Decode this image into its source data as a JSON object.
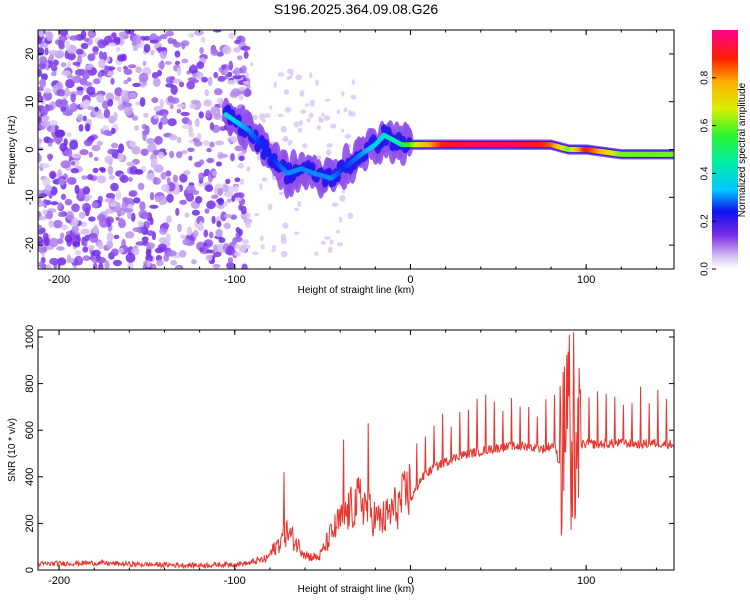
{
  "title": "S196.2025.364.09.08.G26",
  "chart_data": [
    {
      "type": "heatmap",
      "xlabel": "Height of straight line (km)",
      "ylabel": "Frequency (Hz)",
      "xlim": [
        -212,
        150
      ],
      "ylim": [
        -25,
        25
      ],
      "xticks": [
        -200,
        -100,
        0,
        100
      ],
      "yticks": [
        -20,
        -10,
        0,
        10,
        20
      ],
      "xtick_labels": [
        "-200",
        "-100",
        "0",
        "100"
      ],
      "ytick_labels": [
        "-20",
        "-10",
        "0",
        "10",
        "20"
      ],
      "colorbar": {
        "label": "Normalized spectral amplitude",
        "range": [
          0,
          1
        ],
        "ticks": [
          0.0,
          0.2,
          0.4,
          0.6,
          0.8
        ],
        "tick_labels": [
          "0.0",
          "0.2",
          "0.4",
          "0.6",
          "0.8"
        ]
      },
      "ridge": [
        {
          "x": -100,
          "y": 6,
          "amp": 0.35
        },
        {
          "x": -92,
          "y": 4,
          "amp": 0.3
        },
        {
          "x": -85,
          "y": 1,
          "amp": 0.25
        },
        {
          "x": -78,
          "y": -2,
          "amp": 0.25
        },
        {
          "x": -70,
          "y": -5,
          "amp": 0.3
        },
        {
          "x": -62,
          "y": -4,
          "amp": 0.3
        },
        {
          "x": -55,
          "y": -5,
          "amp": 0.3
        },
        {
          "x": -45,
          "y": -6,
          "amp": 0.3
        },
        {
          "x": -38,
          "y": -4,
          "amp": 0.25
        },
        {
          "x": -28,
          "y": -1,
          "amp": 0.3
        },
        {
          "x": -20,
          "y": 1,
          "amp": 0.35
        },
        {
          "x": -15,
          "y": 3,
          "amp": 0.4
        },
        {
          "x": -5,
          "y": 1,
          "amp": 0.45
        },
        {
          "x": 5,
          "y": 1,
          "amp": 0.7
        },
        {
          "x": 20,
          "y": 1,
          "amp": 0.9
        },
        {
          "x": 40,
          "y": 1,
          "amp": 0.95
        },
        {
          "x": 60,
          "y": 1,
          "amp": 0.95
        },
        {
          "x": 80,
          "y": 1,
          "amp": 0.85
        },
        {
          "x": 90,
          "y": 0,
          "amp": 0.6
        },
        {
          "x": 100,
          "y": 0,
          "amp": 0.9
        },
        {
          "x": 120,
          "y": -1,
          "amp": 0.6
        },
        {
          "x": 150,
          "y": -1,
          "amp": 0.6
        }
      ]
    },
    {
      "type": "line",
      "xlabel": "Height of straight line (km)",
      "ylabel": "SNR (10 * v/v)",
      "xlim": [
        -212,
        150
      ],
      "ylim": [
        0,
        1030
      ],
      "xticks": [
        -200,
        -100,
        0,
        100
      ],
      "yticks": [
        0,
        200,
        400,
        600,
        800,
        1000
      ],
      "xtick_labels": [
        "-200",
        "-100",
        "0",
        "100"
      ],
      "ytick_labels": [
        "0",
        "200",
        "400",
        "600",
        "800",
        "1000"
      ],
      "color": "#e8352e",
      "series": [
        {
          "name": "SNR",
          "x": [
            -212,
            -200,
            -180,
            -160,
            -140,
            -120,
            -100,
            -90,
            -82,
            -76,
            -70,
            -64,
            -58,
            -52,
            -46,
            -40,
            -34,
            -28,
            -22,
            -18,
            -14,
            -10,
            -6,
            -2,
            2,
            6,
            10,
            16,
            22,
            28,
            34,
            40,
            46,
            52,
            58,
            64,
            70,
            76,
            82,
            86,
            88,
            90,
            92,
            94,
            96,
            100,
            110,
            120,
            130,
            140,
            150
          ],
          "y": [
            25,
            28,
            30,
            25,
            22,
            20,
            25,
            30,
            40,
            90,
            140,
            90,
            50,
            45,
            120,
            180,
            220,
            260,
            200,
            180,
            190,
            220,
            240,
            280,
            330,
            390,
            420,
            450,
            470,
            490,
            500,
            510,
            520,
            525,
            530,
            530,
            525,
            520,
            540,
            420,
            650,
            850,
            140,
            560,
            540,
            540,
            540,
            545,
            540,
            545,
            540
          ]
        }
      ],
      "peaks": [
        {
          "x": -72,
          "y": 420
        },
        {
          "x": -38,
          "y": 560
        },
        {
          "x": -24,
          "y": 630
        },
        {
          "x": 93,
          "y": 1020
        },
        {
          "x": 85,
          "y": 790
        }
      ]
    }
  ]
}
